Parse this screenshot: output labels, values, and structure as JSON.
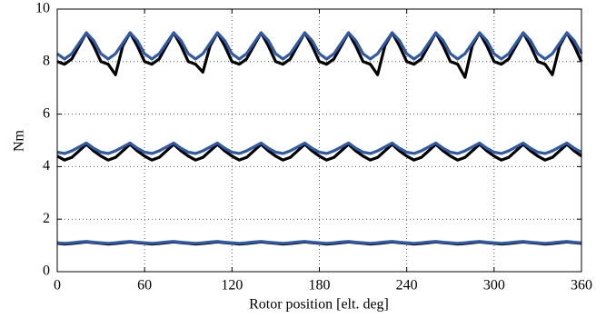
{
  "chart_data": {
    "type": "line",
    "xlabel": "Rotor position [elt. deg]",
    "ylabel": "Nm",
    "x": [
      0,
      5,
      10,
      15,
      20,
      25,
      30,
      35,
      40,
      45,
      50,
      55,
      60,
      65,
      70,
      75,
      80,
      85,
      90,
      95,
      100,
      105,
      110,
      115,
      120,
      125,
      130,
      135,
      140,
      145,
      150,
      155,
      160,
      165,
      170,
      175,
      180,
      185,
      190,
      195,
      200,
      205,
      210,
      215,
      220,
      225,
      230,
      235,
      240,
      245,
      250,
      255,
      260,
      265,
      270,
      275,
      280,
      285,
      290,
      295,
      300,
      305,
      310,
      315,
      320,
      325,
      330,
      335,
      340,
      345,
      350,
      355,
      360
    ],
    "series": [
      {
        "color": "#000000",
        "values": [
          8.0,
          7.9,
          8.1,
          8.6,
          9.1,
          8.6,
          8.0,
          7.9,
          7.5,
          8.6,
          9.1,
          8.6,
          8.0,
          7.9,
          8.1,
          8.6,
          9.1,
          8.6,
          8.0,
          7.9,
          7.6,
          8.6,
          9.1,
          8.6,
          8.0,
          7.9,
          8.1,
          8.6,
          9.1,
          8.6,
          8.0,
          7.9,
          8.1,
          8.6,
          9.1,
          8.6,
          8.0,
          7.9,
          8.1,
          8.6,
          9.1,
          8.6,
          8.0,
          7.9,
          7.5,
          8.6,
          9.1,
          8.6,
          8.0,
          7.9,
          8.1,
          8.6,
          9.1,
          8.6,
          8.0,
          7.9,
          7.4,
          8.6,
          9.1,
          8.6,
          8.0,
          7.9,
          8.1,
          8.6,
          9.1,
          8.6,
          8.0,
          7.9,
          7.5,
          8.6,
          9.1,
          8.6,
          8.0
        ]
      },
      {
        "color": "#2f5aa8",
        "values": [
          8.3,
          8.1,
          8.3,
          8.7,
          9.1,
          8.8,
          8.3,
          8.1,
          8.3,
          8.7,
          9.1,
          8.8,
          8.3,
          8.1,
          8.3,
          8.7,
          9.1,
          8.8,
          8.3,
          8.1,
          8.3,
          8.7,
          9.1,
          8.8,
          8.3,
          8.1,
          8.3,
          8.7,
          9.1,
          8.8,
          8.3,
          8.1,
          8.3,
          8.7,
          9.1,
          8.8,
          8.3,
          8.1,
          8.3,
          8.7,
          9.1,
          8.8,
          8.3,
          8.1,
          8.3,
          8.7,
          9.1,
          8.8,
          8.3,
          8.1,
          8.3,
          8.7,
          9.1,
          8.8,
          8.3,
          8.1,
          8.3,
          8.7,
          9.1,
          8.8,
          8.3,
          8.1,
          8.3,
          8.7,
          9.1,
          8.8,
          8.3,
          8.1,
          8.3,
          8.7,
          9.1,
          8.8,
          8.3
        ]
      },
      {
        "color": "#000000",
        "values": [
          4.4,
          4.25,
          4.35,
          4.6,
          4.85,
          4.6,
          4.4,
          4.25,
          4.35,
          4.6,
          4.85,
          4.6,
          4.4,
          4.25,
          4.35,
          4.6,
          4.85,
          4.6,
          4.4,
          4.25,
          4.35,
          4.6,
          4.85,
          4.6,
          4.4,
          4.25,
          4.35,
          4.6,
          4.85,
          4.6,
          4.4,
          4.25,
          4.35,
          4.6,
          4.85,
          4.6,
          4.4,
          4.25,
          4.35,
          4.6,
          4.85,
          4.6,
          4.4,
          4.25,
          4.35,
          4.6,
          4.85,
          4.6,
          4.4,
          4.25,
          4.35,
          4.6,
          4.85,
          4.6,
          4.4,
          4.25,
          4.35,
          4.6,
          4.85,
          4.6,
          4.4,
          4.25,
          4.35,
          4.6,
          4.85,
          4.6,
          4.4,
          4.25,
          4.35,
          4.6,
          4.85,
          4.6,
          4.4
        ]
      },
      {
        "color": "#2f5aa8",
        "values": [
          4.55,
          4.5,
          4.6,
          4.75,
          4.9,
          4.7,
          4.55,
          4.5,
          4.6,
          4.75,
          4.9,
          4.7,
          4.55,
          4.5,
          4.6,
          4.75,
          4.9,
          4.7,
          4.55,
          4.5,
          4.6,
          4.75,
          4.9,
          4.7,
          4.55,
          4.5,
          4.6,
          4.75,
          4.9,
          4.7,
          4.55,
          4.5,
          4.6,
          4.75,
          4.9,
          4.7,
          4.55,
          4.5,
          4.6,
          4.75,
          4.9,
          4.7,
          4.55,
          4.5,
          4.6,
          4.75,
          4.9,
          4.7,
          4.55,
          4.5,
          4.6,
          4.75,
          4.9,
          4.7,
          4.55,
          4.5,
          4.6,
          4.75,
          4.9,
          4.7,
          4.55,
          4.5,
          4.6,
          4.75,
          4.9,
          4.7,
          4.55,
          4.5,
          4.6,
          4.75,
          4.9,
          4.7,
          4.55
        ]
      },
      {
        "color": "#000000",
        "values": [
          1.08,
          1.05,
          1.07,
          1.1,
          1.13,
          1.1,
          1.08,
          1.05,
          1.07,
          1.1,
          1.13,
          1.1,
          1.08,
          1.05,
          1.07,
          1.1,
          1.13,
          1.1,
          1.08,
          1.05,
          1.07,
          1.1,
          1.13,
          1.1,
          1.08,
          1.05,
          1.07,
          1.1,
          1.13,
          1.1,
          1.08,
          1.05,
          1.07,
          1.1,
          1.13,
          1.1,
          1.08,
          1.05,
          1.07,
          1.1,
          1.13,
          1.1,
          1.08,
          1.05,
          1.07,
          1.1,
          1.13,
          1.1,
          1.08,
          1.05,
          1.07,
          1.1,
          1.13,
          1.1,
          1.08,
          1.05,
          1.07,
          1.1,
          1.13,
          1.1,
          1.08,
          1.05,
          1.07,
          1.1,
          1.13,
          1.1,
          1.08,
          1.05,
          1.07,
          1.1,
          1.13,
          1.1,
          1.08
        ]
      },
      {
        "color": "#2f5aa8",
        "values": [
          1.1,
          1.08,
          1.1,
          1.13,
          1.15,
          1.12,
          1.1,
          1.08,
          1.1,
          1.13,
          1.15,
          1.12,
          1.1,
          1.08,
          1.1,
          1.13,
          1.15,
          1.12,
          1.1,
          1.08,
          1.1,
          1.13,
          1.15,
          1.12,
          1.1,
          1.08,
          1.1,
          1.13,
          1.15,
          1.12,
          1.1,
          1.08,
          1.1,
          1.13,
          1.15,
          1.12,
          1.1,
          1.08,
          1.1,
          1.13,
          1.15,
          1.12,
          1.1,
          1.08,
          1.1,
          1.13,
          1.15,
          1.12,
          1.1,
          1.08,
          1.1,
          1.13,
          1.15,
          1.12,
          1.1,
          1.08,
          1.1,
          1.13,
          1.15,
          1.12,
          1.1,
          1.08,
          1.1,
          1.13,
          1.15,
          1.12,
          1.1,
          1.08,
          1.1,
          1.13,
          1.15,
          1.12,
          1.1
        ]
      }
    ],
    "xlim": [
      0,
      360
    ],
    "xticks": [
      0,
      60,
      120,
      180,
      240,
      300,
      360
    ],
    "ylim": [
      0,
      10
    ],
    "yticks": [
      0,
      2,
      4,
      6,
      8,
      10
    ],
    "grid": true
  }
}
